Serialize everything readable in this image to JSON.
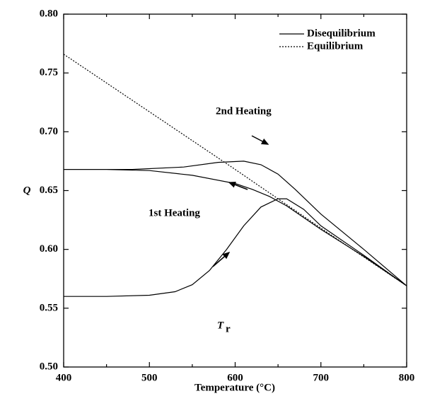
{
  "chart_data": {
    "type": "line",
    "xlabel": "Temperature (°C)",
    "ylabel": "Q",
    "xlim": [
      400,
      800
    ],
    "ylim": [
      0.5,
      0.8
    ],
    "xticks": [
      400,
      500,
      600,
      700,
      800
    ],
    "yticks": [
      {
        "value": 0.5,
        "label": "0.50"
      },
      {
        "value": 0.55,
        "label": "0.55"
      },
      {
        "value": 0.6,
        "label": "0.60"
      },
      {
        "value": 0.65,
        "label": "0.65"
      },
      {
        "value": 0.7,
        "label": "0.70"
      },
      {
        "value": 0.75,
        "label": "0.75"
      },
      {
        "value": 0.8,
        "label": "0.80"
      }
    ],
    "legend": "upper right",
    "series": [
      {
        "name": "Disequilibrium",
        "color": "#000000",
        "dash": "solid",
        "x": [
          400,
          450,
          500,
          530,
          550,
          570,
          590,
          610,
          630,
          650,
          660,
          680,
          700,
          750,
          800,
          null,
          800,
          750,
          700,
          680,
          660,
          640,
          620,
          600,
          550,
          500,
          450,
          400,
          null,
          400,
          480,
          540,
          580,
          610,
          630,
          650,
          670,
          700,
          750,
          800
        ],
        "values": [
          0.56,
          0.56,
          0.561,
          0.564,
          0.57,
          0.582,
          0.6,
          0.62,
          0.636,
          0.643,
          0.643,
          0.634,
          0.62,
          0.595,
          0.569,
          null,
          0.569,
          0.594,
          0.617,
          0.627,
          0.637,
          0.645,
          0.651,
          0.656,
          0.663,
          0.667,
          0.668,
          0.668,
          null,
          0.668,
          0.668,
          0.67,
          0.674,
          0.675,
          0.672,
          0.664,
          0.651,
          0.63,
          0.6,
          0.569
        ]
      },
      {
        "name": "Equilibrium",
        "color": "#000000",
        "dash": "dotted",
        "x": [
          400,
          500,
          600,
          700,
          800
        ],
        "values": [
          0.766,
          0.717,
          0.668,
          0.618,
          0.569
        ]
      }
    ],
    "annotations": {
      "second_heating": "2nd Heating",
      "first_heating": "1st Heating",
      "tr_symbol": "T",
      "tr_subscript": "r"
    }
  }
}
